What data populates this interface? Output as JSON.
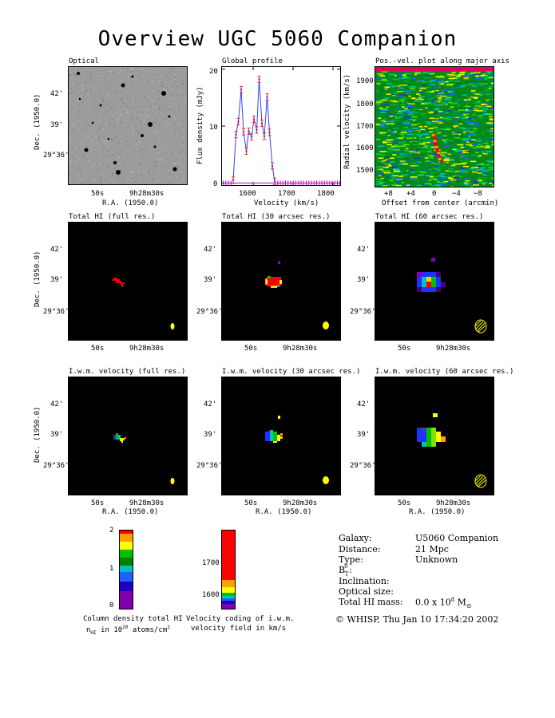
{
  "title": "Overview UGC 5060 Companion",
  "panels": {
    "optical": "Optical",
    "global_profile": "Global profile",
    "posvel": "Pos.-vel. plot along major axis",
    "total_full": "Total HI (full res.)",
    "total_30": "Total HI (30 arcsec res.)",
    "total_60": "Total HI (60 arcsec res.)",
    "vel_full": "I.w.m. velocity (full res.)",
    "vel_30": "I.w.m. velocity (30 arcsec res.)",
    "vel_60": "I.w.m. velocity (60 arcsec res.)"
  },
  "axes": {
    "dec_label": "Dec. (1950.0)",
    "ra_label": "R.A. (1950.0)",
    "dec_ticks": [
      "42'",
      "39'",
      "29°36'"
    ],
    "ra_ticks": [
      "50s",
      "9h28m30s"
    ],
    "flux_label": "Flux density (mJy)",
    "velocity_label": "Velocity (km/s)",
    "flux_ticks": [
      "20",
      "10",
      "0"
    ],
    "vel_ticks": [
      "1600",
      "1700",
      "1800"
    ],
    "radial_label": "Radial velocity (km/s)",
    "offset_label": "Offset from center (arcmin)",
    "radial_ticks": [
      "1900",
      "1800",
      "1700",
      "1600",
      "1500"
    ],
    "offset_ticks": [
      "+8",
      "+4",
      "0",
      "−4",
      "−8"
    ]
  },
  "profile": {
    "velocity": [
      1550,
      1557,
      1563,
      1570,
      1576,
      1583,
      1589,
      1596,
      1602,
      1609,
      1615,
      1622,
      1628,
      1635,
      1641,
      1648,
      1654
    ],
    "flux": [
      0.5,
      8.5,
      10.8,
      16.4,
      9.0,
      5.6,
      9.1,
      8.1,
      11.2,
      9.3,
      18.2,
      10.5,
      8.2,
      15.1,
      8.9,
      3.0,
      0.3
    ],
    "color_line": "#3040ff",
    "color_err": "#ff2020",
    "color_base": "#c000c0"
  },
  "colorbars": {
    "density_ticks": [
      "2",
      "1",
      "0"
    ],
    "density_caption_1": "Column density total HI",
    "density_caption_2": "n",
    "density_caption_sub": "HI",
    "density_caption_3": "in 10",
    "density_caption_exp": "20",
    "density_caption_4": "atoms/cm",
    "density_caption_exp2": "2",
    "velocity_ticks": [
      "1700",
      "1600"
    ],
    "velocity_caption_1": "Velocity coding of i.w.m.",
    "velocity_caption_2": "velocity field in km/s"
  },
  "info": {
    "labels": [
      "Galaxy:",
      "Distance:",
      "Type:",
      "B",
      "Inclination:",
      "Optical size:",
      "Total HI mass:"
    ],
    "values": [
      "U5060 Companion",
      "21 Mpc",
      "Unknown",
      "",
      "",
      "",
      "0.0 x 10"
    ],
    "b_super": "0",
    "b_sub": "T",
    "b_colon": ":",
    "mass_exp": "8",
    "mass_unit": "M",
    "mass_sun": "⊙",
    "footer": "© WHISP, Thu Jan 10 17:34:20 2002"
  }
}
